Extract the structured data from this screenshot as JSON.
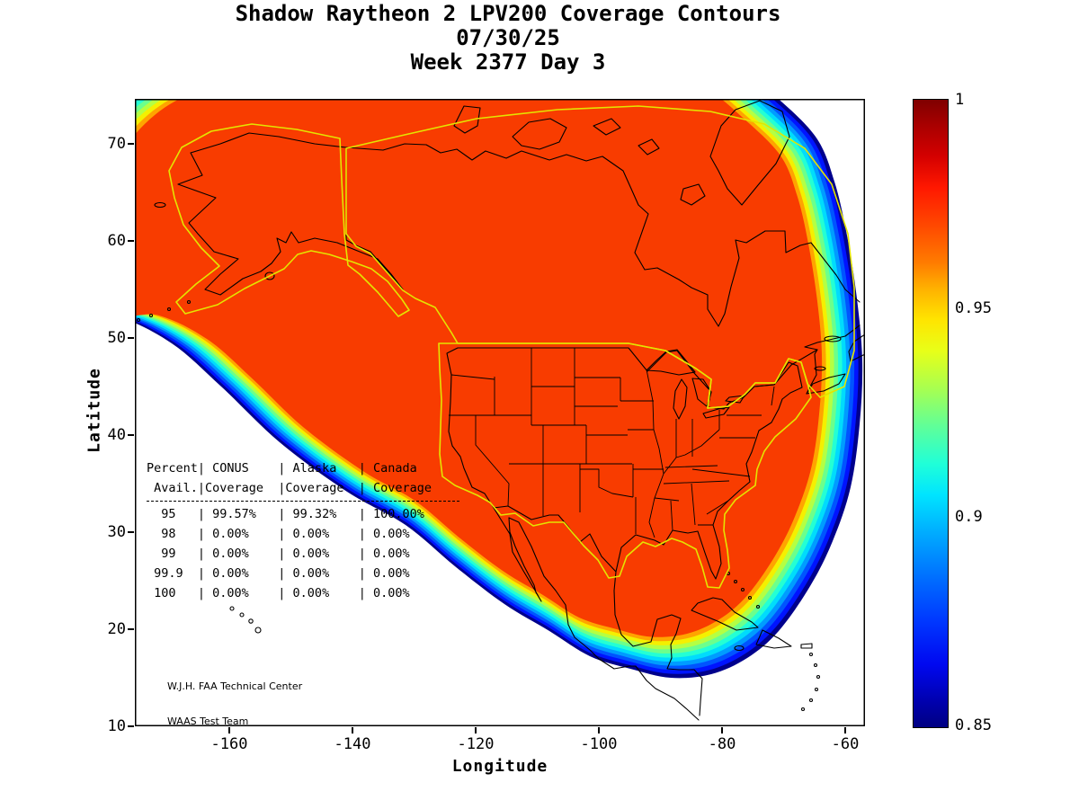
{
  "title": {
    "line1": "Shadow Raytheon 2 LPV200 Coverage Contours",
    "line2": "07/30/25",
    "line3": "Week 2377 Day 3"
  },
  "axes": {
    "xlabel": "Longitude",
    "ylabel": "Latitude",
    "x_tick_labels": [
      "-160",
      "-140",
      "-120",
      "-100",
      "-80",
      "-60"
    ],
    "x_tick_values": [
      -160,
      -140,
      -120,
      -100,
      -80,
      -60
    ],
    "y_tick_labels": [
      "70",
      "60",
      "50",
      "40",
      "30",
      "20",
      "10"
    ],
    "y_tick_values": [
      70,
      60,
      50,
      40,
      30,
      20,
      10
    ]
  },
  "colorbar": {
    "labels": [
      "1",
      "0.95",
      "0.9",
      "0.85"
    ],
    "min": 0.85,
    "max": 1
  },
  "table": {
    "separator_after": 2,
    "rows": [
      "Percent| CONUS    | Alaska   | Canada",
      " Avail.|Coverage  |Coverage  | Coverage",
      "  95   | 99.57%   | 99.32%   | 100.00%",
      "  98   | 0.00%    | 0.00%    | 0.00%",
      "  99   | 0.00%    | 0.00%    | 0.00%",
      " 99.9  | 0.00%    | 0.00%    | 0.00%",
      " 100   | 0.00%    | 0.00%    | 0.00%"
    ]
  },
  "credit": {
    "line1": "W.J.H. FAA Technical Center",
    "line2": "WAAS Test Team"
  },
  "chart_data": {
    "type": "contour",
    "title": "Shadow Raytheon 2 LPV200 Coverage Contours",
    "date": "07/30/25",
    "week": 2377,
    "day": 3,
    "xlabel": "Longitude",
    "ylabel": "Latitude",
    "xlim": [
      -175.3,
      -56.8
    ],
    "ylim": [
      10.0,
      74.6
    ],
    "x_ticks": [
      -160,
      -140,
      -120,
      -100,
      -80,
      -60
    ],
    "y_ticks": [
      10,
      20,
      30,
      40,
      50,
      60,
      70
    ],
    "colorbar": {
      "min": 0.85,
      "max": 1.0,
      "ticks": [
        1,
        0.95,
        0.9,
        0.85
      ],
      "colormap": "jet"
    },
    "availability_table": [
      {
        "percent_avail": "95",
        "conus_coverage": "99.57%",
        "alaska_coverage": "99.32%",
        "canada_coverage": "100.00%"
      },
      {
        "percent_avail": "98",
        "conus_coverage": "0.00%",
        "alaska_coverage": "0.00%",
        "canada_coverage": "0.00%"
      },
      {
        "percent_avail": "99",
        "conus_coverage": "0.00%",
        "alaska_coverage": "0.00%",
        "canada_coverage": "0.00%"
      },
      {
        "percent_avail": "99.9",
        "conus_coverage": "0.00%",
        "alaska_coverage": "0.00%",
        "canada_coverage": "0.00%"
      },
      {
        "percent_avail": "100",
        "conus_coverage": "0.00%",
        "alaska_coverage": "0.00%",
        "canada_coverage": "0.00%"
      }
    ],
    "coverage_region": {
      "note": "LPV200 coverage blob in plot-local px (812x698); bands outer->inner follow jet colormap 0.85->0.96",
      "centroid": [
        400,
        230
      ],
      "outer_boundary": [
        [
          -85,
          235
        ],
        [
          -85,
          120
        ],
        [
          -70,
          45
        ],
        [
          0,
          -25
        ],
        [
          120,
          -60
        ],
        [
          300,
          -85
        ],
        [
          520,
          -80
        ],
        [
          620,
          -48
        ],
        [
          668,
          -38
        ],
        [
          710,
          -5
        ],
        [
          757,
          42
        ],
        [
          778,
          92
        ],
        [
          792,
          152
        ],
        [
          803,
          222
        ],
        [
          809,
          292
        ],
        [
          806,
          362
        ],
        [
          796,
          432
        ],
        [
          776,
          492
        ],
        [
          751,
          542
        ],
        [
          716,
          592
        ],
        [
          681,
          622
        ],
        [
          641,
          640
        ],
        [
          596,
          644
        ],
        [
          551,
          634
        ],
        [
          506,
          620
        ],
        [
          461,
          592
        ],
        [
          411,
          562
        ],
        [
          356,
          520
        ],
        [
          301,
          474
        ],
        [
          236,
          437
        ],
        [
          161,
          382
        ],
        [
          96,
          320
        ],
        [
          41,
          272
        ],
        [
          -20,
          242
        ]
      ],
      "band_scales": [
        1,
        0.989,
        0.978,
        0.967,
        0.956,
        0.945,
        0.934,
        0.923,
        0.912,
        0.901,
        0.89
      ],
      "band_colors": [
        "#00008c",
        "#0014ff",
        "#0054ff",
        "#009cff",
        "#00dcfc",
        "#24ffd4",
        "#6cff8c",
        "#b4ff44",
        "#f4f000",
        "#ffa400",
        "#f83c00"
      ]
    }
  }
}
